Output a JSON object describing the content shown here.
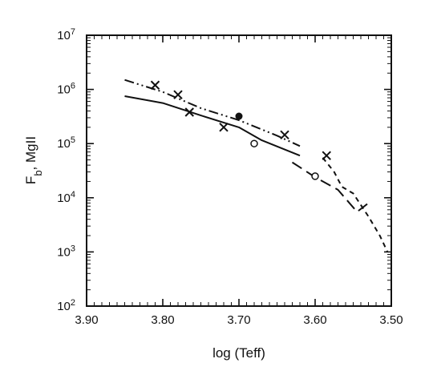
{
  "chart_data": {
    "type": "line",
    "title": "",
    "xlabel": "log (Teff)",
    "ylabel_main": "F",
    "ylabel_sub": "b",
    "ylabel_rest": ", MgII",
    "x_axis": {
      "range": [
        3.9,
        3.5
      ],
      "reversed": true,
      "ticks": [
        3.9,
        3.8,
        3.7,
        3.6,
        3.5
      ],
      "tick_labels": [
        "3.90",
        "3.80",
        "3.70",
        "3.60",
        "3.50"
      ]
    },
    "y_axis": {
      "scale": "log",
      "range": [
        100,
        10000000
      ],
      "ticks": [
        2,
        3,
        4,
        5,
        6,
        7
      ],
      "tick_base": "10"
    },
    "grid": false,
    "legend": "none",
    "series": [
      {
        "style": "solid",
        "points": [
          [
            3.85,
            750000
          ],
          [
            3.8,
            560000
          ],
          [
            3.75,
            330000
          ],
          [
            3.7,
            200000
          ],
          [
            3.67,
            115000
          ],
          [
            3.62,
            60000
          ]
        ]
      },
      {
        "style": "dash-dot-dot",
        "points": [
          [
            3.85,
            1500000
          ],
          [
            3.8,
            900000
          ],
          [
            3.75,
            450000
          ],
          [
            3.7,
            270000
          ],
          [
            3.65,
            140000
          ],
          [
            3.62,
            90000
          ]
        ]
      },
      {
        "style": "long-dash",
        "points": [
          [
            3.63,
            45000
          ],
          [
            3.6,
            24000
          ],
          [
            3.57,
            14000
          ],
          [
            3.545,
            5500
          ],
          [
            3.53,
            8000
          ]
        ]
      },
      {
        "style": "short-dash",
        "points": [
          [
            3.59,
            55000
          ],
          [
            3.575,
            30000
          ],
          [
            3.565,
            16000
          ],
          [
            3.55,
            12000
          ],
          [
            3.53,
            4500
          ],
          [
            3.515,
            2000
          ],
          [
            3.505,
            1000
          ]
        ]
      }
    ],
    "markers": [
      {
        "type": "cross",
        "points": [
          [
            3.81,
            1200000
          ],
          [
            3.78,
            800000
          ],
          [
            3.765,
            380000
          ],
          [
            3.72,
            200000
          ],
          [
            3.64,
            145000
          ],
          [
            3.585,
            60000
          ]
        ]
      },
      {
        "type": "open-circle",
        "points": [
          [
            3.68,
            100000
          ],
          [
            3.6,
            25000
          ]
        ]
      },
      {
        "type": "filled-circle",
        "points": [
          [
            3.7,
            320000
          ]
        ]
      }
    ]
  }
}
